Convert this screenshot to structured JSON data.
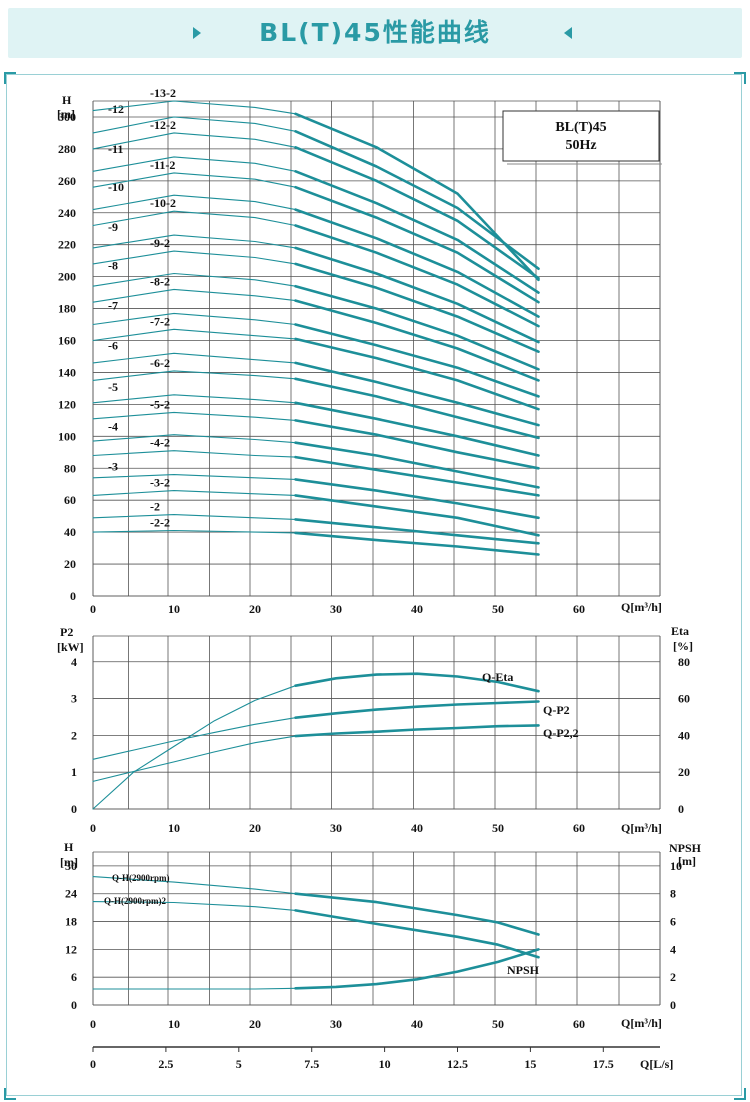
{
  "banner": {
    "title": "BL(T)45性能曲线"
  },
  "chart_data": [
    {
      "id": "head",
      "type": "line",
      "ylabel": "H",
      "yunit": "[m]",
      "xlabel": "Q[m³/h]",
      "xlim": [
        0,
        70
      ],
      "ylim": [
        0,
        310
      ],
      "xticks": [
        "0",
        "10",
        "20",
        "30",
        "40",
        "50",
        "60"
      ],
      "yticks": [
        "0",
        "20",
        "40",
        "60",
        "80",
        "100",
        "120",
        "140",
        "160",
        "180",
        "200",
        "220",
        "240",
        "260",
        "280",
        "300"
      ],
      "legend_box": {
        "line1": "BL(T)45",
        "line2": "50Hz"
      },
      "grid": true,
      "series": [
        {
          "name": "-2-2",
          "x": [
            0,
            10,
            20,
            25,
            35,
            45,
            55
          ],
          "y": [
            40,
            41,
            40,
            39.5,
            35,
            31,
            26
          ]
        },
        {
          "name": "-2",
          "x": [
            0,
            10,
            20,
            25,
            35,
            45,
            55
          ],
          "y": [
            49,
            51,
            49,
            48,
            43,
            38,
            33
          ]
        },
        {
          "name": "-3-2",
          "x": [
            0,
            10,
            20,
            25,
            35,
            45,
            55
          ],
          "y": [
            63,
            66,
            64,
            63,
            56,
            49,
            38
          ]
        },
        {
          "name": "-3",
          "x": [
            0,
            10,
            20,
            25,
            35,
            45,
            55
          ],
          "y": [
            74,
            76,
            74,
            73,
            66,
            58,
            49
          ]
        },
        {
          "name": "-4-2",
          "x": [
            0,
            10,
            20,
            25,
            35,
            45,
            55
          ],
          "y": [
            88,
            91,
            88,
            87,
            79,
            71,
            63
          ]
        },
        {
          "name": "-4",
          "x": [
            0,
            10,
            20,
            25,
            35,
            45,
            55
          ],
          "y": [
            97,
            101,
            98,
            96,
            88,
            78,
            68
          ]
        },
        {
          "name": "-5-2",
          "x": [
            0,
            10,
            20,
            25,
            35,
            45,
            55
          ],
          "y": [
            111,
            115,
            112,
            110,
            101,
            90,
            80
          ]
        },
        {
          "name": "-5",
          "x": [
            0,
            10,
            20,
            25,
            35,
            45,
            55
          ],
          "y": [
            121,
            126,
            123,
            121,
            111,
            100,
            88
          ]
        },
        {
          "name": "-6-2",
          "x": [
            0,
            10,
            20,
            25,
            35,
            45,
            55
          ],
          "y": [
            135,
            141,
            138,
            136,
            125,
            112,
            99
          ]
        },
        {
          "name": "-6",
          "x": [
            0,
            10,
            20,
            25,
            35,
            45,
            55
          ],
          "y": [
            146,
            152,
            148,
            146,
            134,
            121,
            107
          ]
        },
        {
          "name": "-7-2",
          "x": [
            0,
            10,
            20,
            25,
            35,
            45,
            55
          ],
          "y": [
            160,
            167,
            163,
            161,
            149,
            135,
            117
          ]
        },
        {
          "name": "-7",
          "x": [
            0,
            10,
            20,
            25,
            35,
            45,
            55
          ],
          "y": [
            170,
            177,
            173,
            170,
            157,
            143,
            125
          ]
        },
        {
          "name": "-8-2",
          "x": [
            0,
            10,
            20,
            25,
            35,
            45,
            55
          ],
          "y": [
            184,
            192,
            188,
            185,
            171,
            155,
            135
          ]
        },
        {
          "name": "-8",
          "x": [
            0,
            10,
            20,
            25,
            35,
            45,
            55
          ],
          "y": [
            194,
            202,
            198,
            194,
            180,
            163,
            142
          ]
        },
        {
          "name": "-9-2",
          "x": [
            0,
            10,
            20,
            25,
            35,
            45,
            55
          ],
          "y": [
            208,
            216,
            212,
            208,
            193,
            175,
            153
          ]
        },
        {
          "name": "-9",
          "x": [
            0,
            10,
            20,
            25,
            35,
            45,
            55
          ],
          "y": [
            218,
            226,
            222,
            218,
            202,
            183,
            159
          ]
        },
        {
          "name": "-10-2",
          "x": [
            0,
            10,
            20,
            25,
            35,
            45,
            55
          ],
          "y": [
            232,
            241,
            237,
            232,
            215,
            195,
            169
          ]
        },
        {
          "name": "-10",
          "x": [
            0,
            10,
            20,
            25,
            35,
            45,
            55
          ],
          "y": [
            242,
            251,
            247,
            242,
            224,
            203,
            175
          ]
        },
        {
          "name": "-11-2",
          "x": [
            0,
            10,
            20,
            25,
            35,
            45,
            55
          ],
          "y": [
            256,
            265,
            261,
            256,
            237,
            215,
            184
          ]
        },
        {
          "name": "-11",
          "x": [
            0,
            10,
            20,
            25,
            35,
            45,
            55
          ],
          "y": [
            266,
            275,
            271,
            266,
            246,
            223,
            190
          ]
        },
        {
          "name": "-12-2",
          "x": [
            0,
            10,
            20,
            25,
            35,
            45,
            55
          ],
          "y": [
            280,
            290,
            286,
            281,
            260,
            235,
            199
          ]
        },
        {
          "name": "-12",
          "x": [
            0,
            10,
            20,
            25,
            35,
            45,
            55
          ],
          "y": [
            290,
            300,
            296,
            291,
            269,
            243,
            205
          ]
        },
        {
          "name": "-13-2",
          "x": [
            0,
            10,
            20,
            25,
            35,
            45,
            55
          ],
          "y": [
            304,
            310,
            306,
            302,
            281,
            252,
            198
          ]
        }
      ]
    },
    {
      "id": "power",
      "type": "line",
      "ylabel": "P2",
      "yunit": "[kW]",
      "y2label": "Eta",
      "y2unit": "[%]",
      "xlabel": "Q[m³/h]",
      "xlim": [
        0,
        70
      ],
      "ylim": [
        0,
        4.7
      ],
      "y2lim": [
        0,
        94
      ],
      "xticks": [
        "0",
        "10",
        "20",
        "30",
        "40",
        "50",
        "60"
      ],
      "yticks": [
        "0",
        "1",
        "2",
        "3",
        "4"
      ],
      "y2ticks": [
        "0",
        "20",
        "40",
        "60",
        "80"
      ],
      "grid": true,
      "series": [
        {
          "name": "Q-Eta",
          "axis": "right",
          "x": [
            0,
            5,
            10,
            15,
            20,
            25,
            30,
            35,
            40,
            45,
            50,
            55
          ],
          "y": [
            0,
            20,
            34,
            48,
            59,
            67,
            71,
            73,
            73.5,
            72,
            69,
            64
          ]
        },
        {
          "name": "Q-P2",
          "axis": "left",
          "x": [
            0,
            5,
            10,
            15,
            20,
            25,
            30,
            35,
            40,
            45,
            50,
            55
          ],
          "y": [
            1.35,
            1.6,
            1.85,
            2.08,
            2.3,
            2.48,
            2.6,
            2.7,
            2.78,
            2.84,
            2.88,
            2.92
          ]
        },
        {
          "name": "Q-P2,2",
          "axis": "left",
          "x": [
            0,
            5,
            10,
            15,
            20,
            25,
            30,
            35,
            40,
            45,
            50,
            55
          ],
          "y": [
            0.75,
            1.02,
            1.28,
            1.55,
            1.8,
            1.98,
            2.05,
            2.1,
            2.16,
            2.2,
            2.25,
            2.27
          ]
        }
      ]
    },
    {
      "id": "npsh",
      "type": "line",
      "ylabel": "H",
      "yunit": "[m]",
      "y2label": "NPSH",
      "y2unit": "[m]",
      "xlabel": "Q[m³/h]",
      "x2label": "Q[L/s]",
      "xlim": [
        0,
        70
      ],
      "ylim": [
        0,
        33
      ],
      "y2lim": [
        0,
        11
      ],
      "xticks": [
        "0",
        "10",
        "20",
        "30",
        "40",
        "50",
        "60"
      ],
      "x2ticks": [
        "0",
        "2.5",
        "5",
        "7.5",
        "10",
        "12.5",
        "15",
        "17.5"
      ],
      "yticks": [
        "0",
        "6",
        "12",
        "18",
        "24",
        "30"
      ],
      "y2ticks": [
        "0",
        "2",
        "4",
        "6",
        "8",
        "10"
      ],
      "grid": true,
      "series": [
        {
          "name": "Q-H(2900rpm)",
          "axis": "left",
          "x": [
            0,
            10,
            20,
            25,
            35,
            45,
            50,
            55
          ],
          "y": [
            27.7,
            26.5,
            25,
            24,
            22.2,
            19.4,
            17.8,
            15.2
          ]
        },
        {
          "name": "Q-H(2900rpm)2",
          "axis": "left",
          "x": [
            0,
            10,
            20,
            25,
            35,
            45,
            50,
            55
          ],
          "y": [
            22.3,
            22.1,
            21.2,
            20.4,
            17.5,
            14.7,
            13,
            10.3
          ]
        },
        {
          "name": "NPSH",
          "axis": "right",
          "x": [
            0,
            20,
            25,
            30,
            35,
            40,
            45,
            50,
            55
          ],
          "y": [
            1.15,
            1.15,
            1.2,
            1.3,
            1.5,
            1.85,
            2.4,
            3.1,
            4
          ]
        }
      ]
    }
  ]
}
